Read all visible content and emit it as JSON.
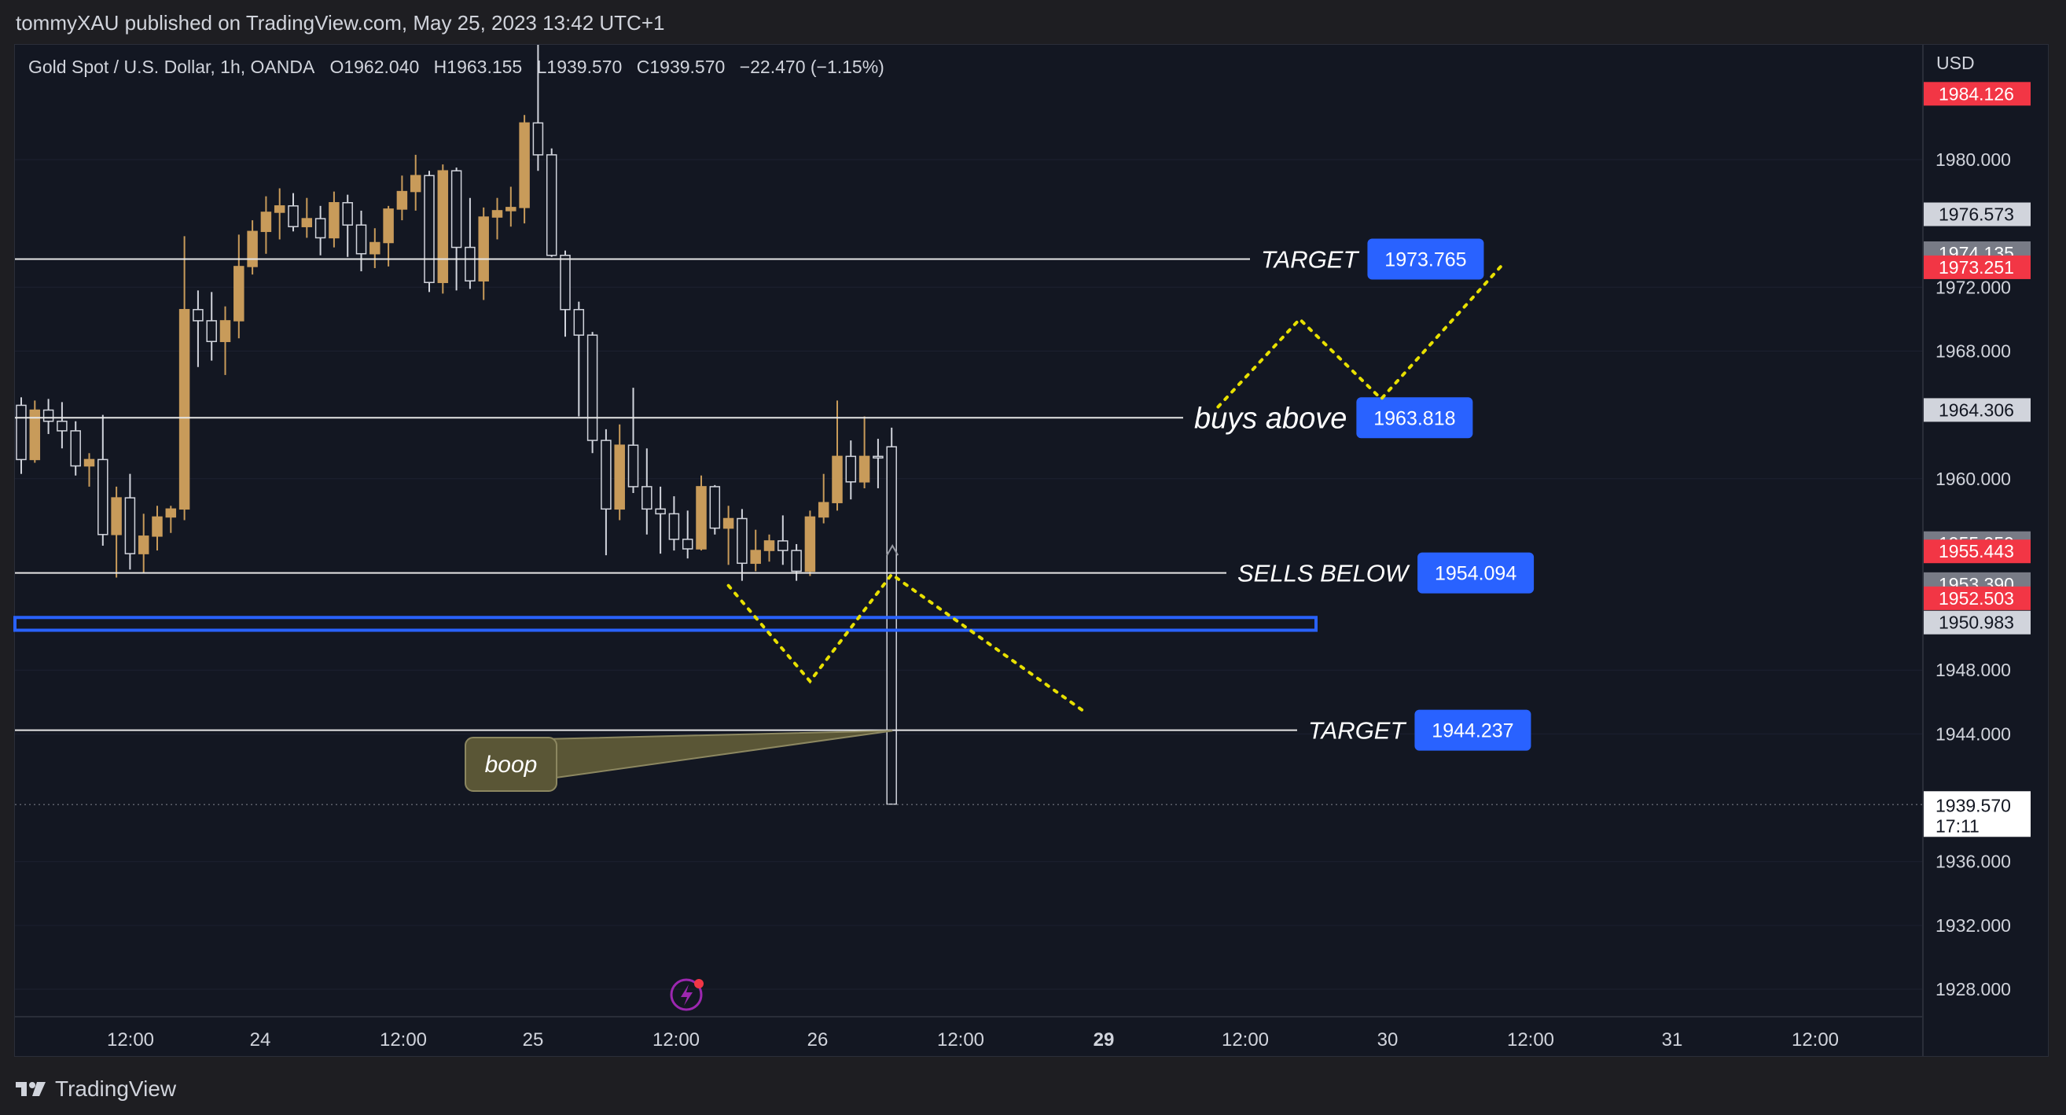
{
  "header": {
    "text": "tommyXAU published on TradingView.com, May 25, 2023 13:42 UTC+1"
  },
  "legend": {
    "symbol": "Gold Spot / U.S. Dollar, 1h, OANDA",
    "o_label": "O",
    "o_value": "1962.040",
    "h_label": "H",
    "h_value": "1963.155",
    "l_label": "L",
    "l_value": "1939.570",
    "c_label": "C",
    "c_value": "1939.570",
    "change": "−22.470 (−1.15%)"
  },
  "footer": {
    "brand": "TradingView"
  },
  "colors": {
    "bg": "#131722",
    "bull": "#c89b5a",
    "bear": "#131722",
    "bear_border": "#d1d4dc",
    "line": "#e6e6e6",
    "blue": "#2962ff",
    "red": "#f23645",
    "gray": "#787b86",
    "zigzag": "#e8e000",
    "note": "#5a5636"
  },
  "chart_data": {
    "type": "candlestick",
    "ylim": [
      1925.0,
      1989.0
    ],
    "currency_label": "USD",
    "y_ticks": [
      "1980.000",
      "1972.000",
      "1968.000",
      "1960.000",
      "1948.000",
      "1944.000",
      "1936.000",
      "1932.000",
      "1928.000"
    ],
    "y_tick_values": [
      1980,
      1972,
      1968,
      1960,
      1948,
      1944,
      1936,
      1932,
      1928
    ],
    "x_ticks": [
      "12:00",
      "24",
      "12:00",
      "25",
      "12:00",
      "26",
      "12:00",
      "29",
      "12:00",
      "30",
      "12:00",
      "31",
      "12:00"
    ],
    "x_tick_bold": [
      false,
      false,
      false,
      false,
      false,
      false,
      false,
      true,
      false,
      false,
      false,
      false,
      false
    ],
    "candles": [
      [
        1964.6,
        1965.1,
        1960.3,
        1961.2
      ],
      [
        1961.2,
        1964.9,
        1961.0,
        1964.3
      ],
      [
        1964.3,
        1965.0,
        1962.8,
        1963.6
      ],
      [
        1963.6,
        1964.8,
        1961.9,
        1963.0
      ],
      [
        1963.0,
        1963.6,
        1960.2,
        1960.8
      ],
      [
        1960.8,
        1961.6,
        1959.5,
        1961.2
      ],
      [
        1961.2,
        1964.0,
        1955.8,
        1956.5
      ],
      [
        1956.5,
        1959.5,
        1953.8,
        1958.8
      ],
      [
        1958.8,
        1960.3,
        1954.3,
        1955.3
      ],
      [
        1955.3,
        1957.8,
        1954.1,
        1956.4
      ],
      [
        1956.4,
        1958.3,
        1955.5,
        1957.6
      ],
      [
        1957.6,
        1958.3,
        1956.6,
        1958.1
      ],
      [
        1958.1,
        1975.2,
        1957.4,
        1970.6
      ],
      [
        1970.6,
        1971.8,
        1967.0,
        1969.9
      ],
      [
        1969.9,
        1971.7,
        1967.4,
        1968.6
      ],
      [
        1968.6,
        1970.8,
        1966.5,
        1969.9
      ],
      [
        1969.9,
        1975.3,
        1968.8,
        1973.3
      ],
      [
        1973.3,
        1976.2,
        1972.8,
        1975.5
      ],
      [
        1975.5,
        1977.7,
        1974.1,
        1976.7
      ],
      [
        1976.7,
        1978.2,
        1975.0,
        1977.1
      ],
      [
        1977.1,
        1977.9,
        1975.5,
        1975.8
      ],
      [
        1975.8,
        1977.6,
        1975.1,
        1976.3
      ],
      [
        1976.3,
        1977.1,
        1974.0,
        1975.1
      ],
      [
        1975.1,
        1978.0,
        1974.5,
        1977.3
      ],
      [
        1977.3,
        1977.8,
        1973.9,
        1975.9
      ],
      [
        1975.9,
        1976.8,
        1973.0,
        1974.1
      ],
      [
        1974.1,
        1975.7,
        1973.2,
        1974.8
      ],
      [
        1974.8,
        1977.1,
        1973.3,
        1976.9
      ],
      [
        1976.9,
        1979.0,
        1976.2,
        1978.0
      ],
      [
        1978.0,
        1980.3,
        1976.8,
        1979.0
      ],
      [
        1979.0,
        1979.3,
        1971.7,
        1972.3
      ],
      [
        1972.3,
        1979.7,
        1971.6,
        1979.3
      ],
      [
        1979.3,
        1979.5,
        1971.8,
        1974.5
      ],
      [
        1974.5,
        1977.6,
        1971.9,
        1972.4
      ],
      [
        1972.4,
        1977.0,
        1971.2,
        1976.4
      ],
      [
        1976.4,
        1977.6,
        1975.0,
        1976.8
      ],
      [
        1976.8,
        1978.3,
        1975.8,
        1977.0
      ],
      [
        1977.0,
        1982.8,
        1976.0,
        1982.3
      ],
      [
        1982.3,
        1988.5,
        1979.3,
        1980.3
      ],
      [
        1980.3,
        1980.7,
        1973.9,
        1974.0
      ],
      [
        1974.0,
        1974.3,
        1968.9,
        1970.6
      ],
      [
        1970.6,
        1971.1,
        1963.9,
        1969.0
      ],
      [
        1969.0,
        1969.2,
        1961.6,
        1962.4
      ],
      [
        1962.4,
        1963.1,
        1955.2,
        1958.1
      ],
      [
        1958.1,
        1963.4,
        1957.4,
        1962.1
      ],
      [
        1962.1,
        1965.7,
        1959.1,
        1959.5
      ],
      [
        1959.5,
        1961.9,
        1956.5,
        1958.1
      ],
      [
        1958.1,
        1959.5,
        1955.3,
        1957.8
      ],
      [
        1957.8,
        1958.9,
        1955.5,
        1956.2
      ],
      [
        1956.2,
        1958.0,
        1955.0,
        1955.6
      ],
      [
        1955.6,
        1960.2,
        1955.5,
        1959.5
      ],
      [
        1959.5,
        1959.6,
        1956.5,
        1956.9
      ],
      [
        1956.9,
        1958.3,
        1954.6,
        1957.5
      ],
      [
        1957.5,
        1958.1,
        1953.6,
        1954.7
      ],
      [
        1954.7,
        1956.8,
        1954.2,
        1955.5
      ],
      [
        1955.5,
        1956.5,
        1954.8,
        1956.1
      ],
      [
        1956.1,
        1957.7,
        1954.6,
        1955.5
      ],
      [
        1955.5,
        1955.9,
        1953.6,
        1954.2
      ],
      [
        1954.2,
        1958.0,
        1953.9,
        1957.6
      ],
      [
        1957.6,
        1960.3,
        1957.2,
        1958.5
      ],
      [
        1958.5,
        1964.9,
        1958.0,
        1961.4
      ],
      [
        1961.4,
        1962.4,
        1958.7,
        1959.8
      ],
      [
        1959.8,
        1963.9,
        1959.4,
        1961.4
      ],
      [
        1961.4,
        1962.5,
        1959.4,
        1961.3
      ],
      [
        1962.0,
        1963.2,
        1939.6,
        1939.6
      ]
    ],
    "horizontal_levels": [
      {
        "value": 1973.765,
        "label": "TARGET",
        "badge": "1973.765"
      },
      {
        "value": 1963.818,
        "label": "buys above",
        "badge": "1963.818"
      },
      {
        "value": 1954.094,
        "label": "SELLS BELOW",
        "badge": "1954.094"
      },
      {
        "value": 1944.237,
        "label": "TARGET",
        "badge": "1944.237"
      }
    ],
    "zone": {
      "top": 1951.3,
      "bottom": 1950.5
    },
    "projection_up": [
      [
        1964.5,
        "24h"
      ],
      [
        1970.0,
        "30h"
      ],
      [
        1965.0,
        "36h"
      ],
      [
        1973.5,
        "45h"
      ]
    ],
    "projection_down": [
      [
        1953.3,
        "-12h"
      ],
      [
        1947.3,
        "-6h"
      ],
      [
        1954.0,
        "0h"
      ],
      [
        1945.5,
        "14h"
      ]
    ],
    "annotation": {
      "text": "boop",
      "target_value": 1944.2
    },
    "price_axis_labels": [
      {
        "value": 1984.126,
        "text": "1984.126",
        "bg": "#f23645",
        "fg": "#ffffff"
      },
      {
        "value": 1976.573,
        "text": "1976.573",
        "bg": "#d1d4dc",
        "fg": "#131722"
      },
      {
        "value": 1974.135,
        "text": "1974.135",
        "bg": "#787b86",
        "fg": "#ffffff"
      },
      {
        "value": 1973.251,
        "text": "1973.251",
        "bg": "#f23645",
        "fg": "#ffffff"
      },
      {
        "value": 1964.306,
        "text": "1964.306",
        "bg": "#d1d4dc",
        "fg": "#131722"
      },
      {
        "value": 1955.959,
        "text": "1955.959",
        "bg": "#787b86",
        "fg": "#ffffff"
      },
      {
        "value": 1955.443,
        "text": "1955.443",
        "bg": "#f23645",
        "fg": "#ffffff"
      },
      {
        "value": 1953.39,
        "text": "1953.390",
        "bg": "#787b86",
        "fg": "#ffffff"
      },
      {
        "value": 1952.503,
        "text": "1952.503",
        "bg": "#f23645",
        "fg": "#ffffff"
      },
      {
        "value": 1950.983,
        "text": "1950.983",
        "bg": "#d1d4dc",
        "fg": "#131722"
      }
    ],
    "last_price": {
      "value": 1939.57,
      "text": "1939.570",
      "countdown": "17:11"
    }
  }
}
